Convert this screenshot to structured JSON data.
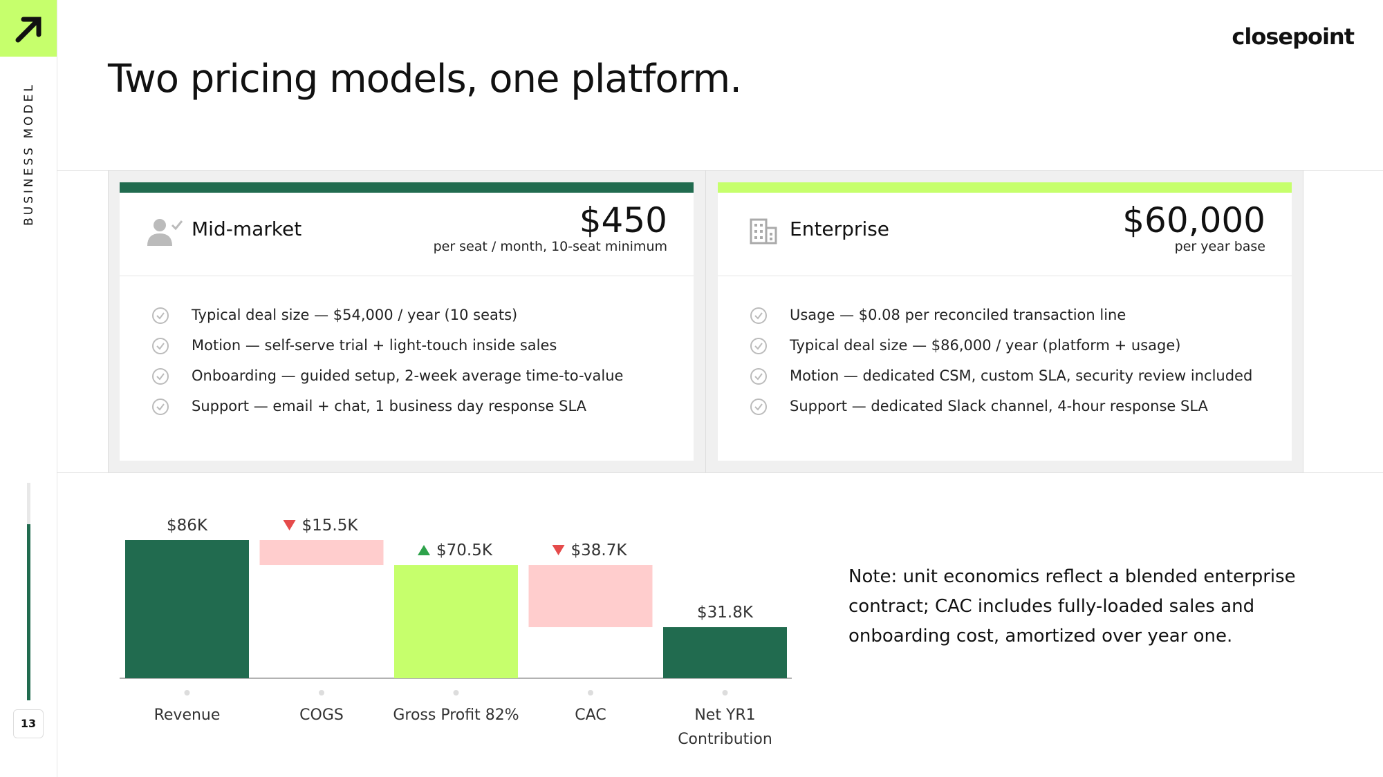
{
  "sidebar": {
    "section": "BUSINESS MODEL",
    "page": "13"
  },
  "brand": "closepoint",
  "title": "Two pricing models, one platform.",
  "cards": [
    {
      "name": "Mid-market",
      "price": "$450",
      "price_note": "per seat / month, 10-seat minimum",
      "bullets": [
        "Typical deal size — $54,000 / year (10 seats)",
        "Motion — self-serve trial + light-touch inside sales",
        "Onboarding — guided setup, 2-week average time-to-value",
        "Support — email + chat, 1 business day response SLA"
      ]
    },
    {
      "name": "Enterprise",
      "price": "$60,000",
      "price_note": "per year base",
      "bullets": [
        "Usage — $0.08 per reconciled transaction line",
        "Typical deal size — $86,000 / year (platform + usage)",
        "Motion — dedicated CSM, custom SLA, security review included",
        "Support — dedicated Slack channel, 4-hour response SLA"
      ]
    }
  ],
  "chart_data": {
    "type": "waterfall",
    "categories": [
      "Revenue",
      "COGS",
      "Gross Profit 82%",
      "CAC",
      "Net YR1 Contribution"
    ],
    "values": [
      86,
      15.5,
      70.5,
      38.7,
      31.8
    ],
    "value_labels": [
      "$86K",
      "$15.5K",
      "$70.5K",
      "$38.7K",
      "$31.8K"
    ],
    "steps": [
      "total",
      "decrease",
      "subtotal",
      "decrease",
      "total"
    ],
    "colors": [
      "#216b4f",
      "#ffcdcd",
      "#c6ff6c",
      "#ffcdcd",
      "#216b4f"
    ]
  },
  "note": "Note: unit economics reflect a blended enterprise contract; CAC includes fully-loaded sales and onboarding cost, amortized over year one."
}
